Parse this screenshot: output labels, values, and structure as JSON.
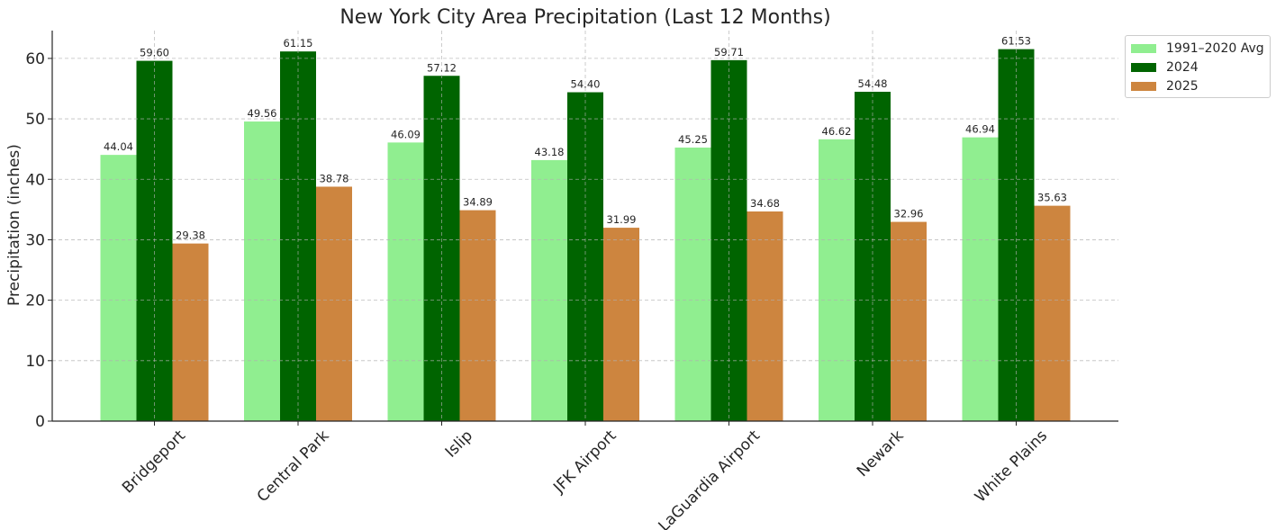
{
  "chart_data": {
    "type": "bar",
    "title": "New York City Area Precipitation (Last 12 Months)",
    "xlabel": "",
    "ylabel": "Precipitation (inches)",
    "ylim": [
      0,
      64.6
    ],
    "yticks": [
      "0",
      "10",
      "20",
      "30",
      "40",
      "50",
      "60"
    ],
    "grid": true,
    "legend_position": "upper-right-outside",
    "categories": [
      "Bridgeport",
      "Central Park",
      "Islip",
      "JFK Airport",
      "LaGuardia Airport",
      "Newark",
      "White Plains"
    ],
    "series": [
      {
        "name": "1991–2020 Avg",
        "color": "#90ee90",
        "values": [
          44.04,
          49.56,
          46.09,
          43.18,
          45.25,
          46.62,
          46.94
        ],
        "labels": [
          "44.04",
          "49.56",
          "46.09",
          "43.18",
          "45.25",
          "46.62",
          "46.94"
        ]
      },
      {
        "name": "2024",
        "color": "#006400",
        "values": [
          59.6,
          61.15,
          57.12,
          54.4,
          59.71,
          54.48,
          61.53
        ],
        "labels": [
          "59.60",
          "61.15",
          "57.12",
          "54.40",
          "59.71",
          "54.48",
          "61.53"
        ]
      },
      {
        "name": "2025",
        "color": "#cd853f",
        "values": [
          29.38,
          38.78,
          34.89,
          31.99,
          34.68,
          32.96,
          35.63
        ],
        "labels": [
          "29.38",
          "38.78",
          "34.89",
          "31.99",
          "34.68",
          "32.96",
          "35.63"
        ]
      }
    ]
  }
}
